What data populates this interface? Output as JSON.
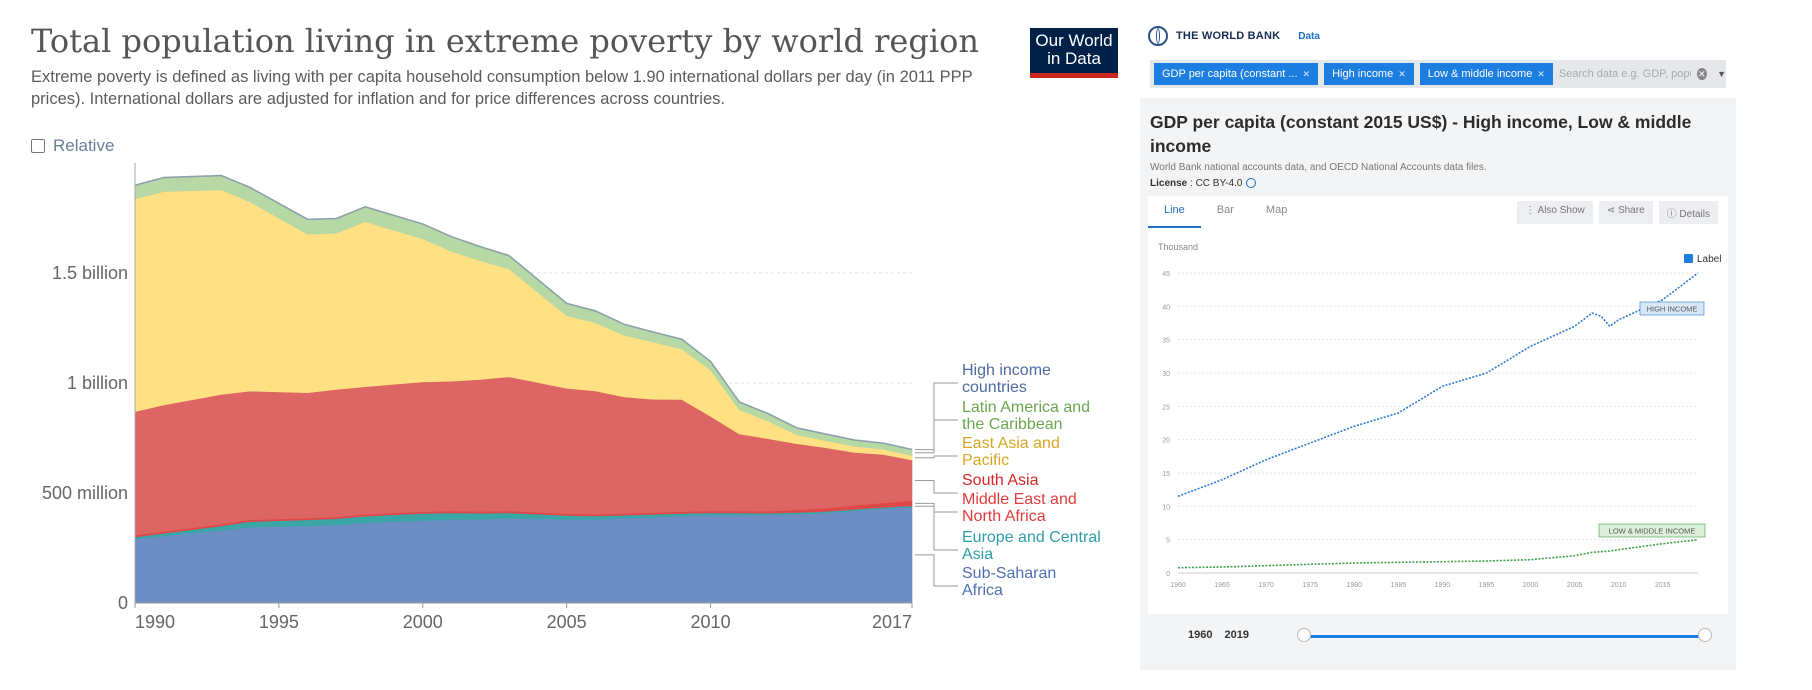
{
  "owid": {
    "title": "Total population living in extreme poverty by world region",
    "subtitle": "Extreme poverty is defined as living with per capita household consumption below 1.90 international dollars per day (in 2011 PPP prices). International dollars are adjusted for inflation and for price differences across countries.",
    "logo_line1": "Our World",
    "logo_line2": "in Data",
    "logo_color": "#002147",
    "relative_label": "Relative"
  },
  "worldbank": {
    "brand": "THE WORLD BANK",
    "data_link": "Data",
    "chips": [
      "GDP per capita (constant ...",
      "High income",
      "Low & middle income"
    ],
    "search_placeholder": "Search data e.g. GDP, populati",
    "chart_title": "GDP per capita (constant 2015 US$) - High income, Low & middle income",
    "source": "World Bank national accounts data, and OECD National Accounts data files.",
    "license_label": "License",
    "license_value": ": CC BY-4.0",
    "tabs": [
      "Line",
      "Bar",
      "Map"
    ],
    "tools": [
      "Also Show",
      "Share",
      "Details"
    ],
    "y_unit": "Thousand",
    "label_toggle": "Label",
    "slider_start": "1960",
    "slider_end": "2019",
    "accent": "#1c7ee0"
  },
  "chart_data": [
    {
      "type": "area",
      "stacked": true,
      "x": [
        1990,
        1991,
        1993,
        1994,
        1996,
        1997,
        1998,
        2000,
        2001,
        2002,
        2003,
        2005,
        2006,
        2007,
        2008,
        2009,
        2010,
        2011,
        2012,
        2013,
        2014,
        2015,
        2016,
        2017
      ],
      "series": [
        {
          "name": "Sub-Saharan Africa",
          "color": "#6c8ec4",
          "values": [
            290,
            305,
            330,
            345,
            350,
            355,
            365,
            375,
            380,
            380,
            385,
            380,
            380,
            385,
            390,
            395,
            400,
            400,
            400,
            405,
            410,
            420,
            430,
            437
          ]
        },
        {
          "name": "Europe and Central Asia",
          "color": "#3aa6a6",
          "values": [
            10,
            12,
            20,
            25,
            28,
            28,
            30,
            32,
            30,
            28,
            25,
            18,
            16,
            14,
            13,
            12,
            10,
            9,
            8,
            7,
            6,
            6,
            5,
            5
          ]
        },
        {
          "name": "Middle East and North Africa",
          "color": "#e04848",
          "values": [
            8,
            8,
            8,
            8,
            8,
            8,
            8,
            8,
            8,
            8,
            8,
            8,
            8,
            8,
            8,
            8,
            8,
            9,
            9,
            12,
            15,
            18,
            20,
            22
          ]
        },
        {
          "name": "South Asia",
          "color": "#dd6563",
          "values": [
            562,
            575,
            590,
            585,
            570,
            580,
            580,
            590,
            590,
            600,
            610,
            570,
            560,
            530,
            515,
            510,
            430,
            350,
            330,
            300,
            275,
            240,
            220,
            186
          ]
        },
        {
          "name": "East Asia and Pacific",
          "color": "#ffe082",
          "values": [
            967,
            970,
            930,
            860,
            720,
            710,
            750,
            650,
            590,
            540,
            490,
            330,
            310,
            280,
            260,
            230,
            210,
            110,
            80,
            40,
            32,
            28,
            24,
            20
          ]
        },
        {
          "name": "Latin America and the Caribbean",
          "color": "#b5d8a5",
          "values": [
            60,
            62,
            63,
            64,
            66,
            65,
            66,
            66,
            65,
            62,
            59,
            54,
            52,
            48,
            44,
            42,
            38,
            34,
            32,
            30,
            28,
            27,
            26,
            26
          ]
        },
        {
          "name": "High income countries",
          "color": "#8fa8d8",
          "values": [
            2,
            2,
            2,
            2,
            2,
            2,
            2,
            2,
            2,
            2,
            2,
            2,
            2,
            2,
            2,
            2,
            2,
            2,
            2,
            2,
            2,
            2,
            2,
            2
          ]
        }
      ],
      "y_ticks": [
        "0",
        "500 million",
        "1 billion",
        "1.5 billion"
      ],
      "y_tick_values": [
        0,
        500,
        1000,
        1500
      ],
      "ylim": [
        0,
        2000
      ],
      "x_ticks": [
        1990,
        1995,
        2000,
        2005,
        2010,
        2017
      ],
      "legend": [
        {
          "label": "High income countries",
          "lines": [
            "High income",
            "countries"
          ],
          "color": "#4e6b9f"
        },
        {
          "label": "Latin America and the Caribbean",
          "lines": [
            "Latin America and",
            "the Caribbean"
          ],
          "color": "#6aa84f"
        },
        {
          "label": "East Asia and Pacific",
          "lines": [
            "East Asia and",
            "Pacific"
          ],
          "color": "#d7a624"
        },
        {
          "label": "South Asia",
          "lines": [
            "South Asia"
          ],
          "color": "#d62728"
        },
        {
          "label": "Middle East and North Africa",
          "lines": [
            "Middle East and",
            "North Africa"
          ],
          "color": "#e03c3c"
        },
        {
          "label": "Europe and Central Asia",
          "lines": [
            "Europe and Central",
            "Asia"
          ],
          "color": "#2e9fa8"
        },
        {
          "label": "Sub-Saharan Africa",
          "lines": [
            "Sub-Saharan",
            "Africa"
          ],
          "color": "#4e6fb3"
        }
      ],
      "legend_position": "right"
    },
    {
      "type": "line",
      "x": [
        1960,
        1965,
        1970,
        1975,
        1980,
        1985,
        1990,
        1995,
        2000,
        2005,
        2007,
        2008,
        2009,
        2010,
        2015,
        2019
      ],
      "series": [
        {
          "name": "HIGH INCOME",
          "color": "#2b7bd0",
          "values": [
            11.5,
            14,
            17,
            19.5,
            22,
            24,
            28,
            30,
            34,
            37,
            39,
            38.5,
            37,
            38,
            41,
            45
          ]
        },
        {
          "name": "LOW & MIDDLE INCOME",
          "color": "#3fa24a",
          "values": [
            0.8,
            0.9,
            1.1,
            1.3,
            1.5,
            1.6,
            1.7,
            1.8,
            2,
            2.6,
            3.1,
            3.2,
            3.3,
            3.5,
            4.4,
            5
          ]
        }
      ],
      "x_ticks": [
        1960,
        1965,
        1970,
        1975,
        1980,
        1985,
        1990,
        1995,
        2000,
        2005,
        2010,
        2015
      ],
      "y_ticks": [
        0,
        5,
        10,
        15,
        20,
        25,
        30,
        35,
        40,
        45
      ],
      "ylim": [
        0,
        45
      ],
      "ylabel": "Thousand",
      "grid": true
    }
  ]
}
